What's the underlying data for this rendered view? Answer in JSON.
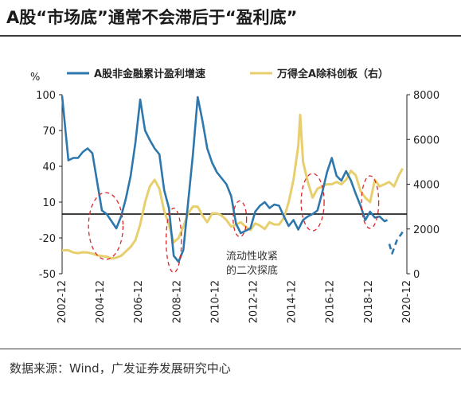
{
  "header": {
    "title": "A股“市场底”通常不会滞后于“盈利底”"
  },
  "footer": {
    "source": "数据来源：Wind，广发证券发展研究中心"
  },
  "annotation": {
    "line1": "流动性收紧",
    "line2": "的二次探底"
  },
  "colors": {
    "earnings": "#2d77ad",
    "index": "#e8cf6e",
    "circle": "#d9262a",
    "zero": "#000000"
  },
  "chart_data": {
    "type": "line",
    "left_axis": {
      "unit": "%",
      "ticks": [
        100,
        70,
        40,
        10,
        -20,
        -50
      ],
      "range": [
        -50,
        100
      ]
    },
    "right_axis": {
      "ticks": [
        8000,
        6000,
        4000,
        2000,
        0
      ],
      "range": [
        0,
        8000
      ]
    },
    "x_ticks": [
      "2002-12",
      "2004-12",
      "2006-12",
      "2008-12",
      "2010-12",
      "2012-12",
      "2014-12",
      "2016-12",
      "2018-12",
      "2020-12"
    ],
    "x_range": [
      2002.92,
      2020.92
    ],
    "series": [
      {
        "name": "A股非金融累计盈利增速",
        "axis": "left",
        "points": [
          [
            2002.92,
            99
          ],
          [
            2003.25,
            45
          ],
          [
            2003.5,
            47
          ],
          [
            2003.75,
            47
          ],
          [
            2004.0,
            52
          ],
          [
            2004.25,
            55
          ],
          [
            2004.5,
            51
          ],
          [
            2004.75,
            27
          ],
          [
            2005.0,
            3
          ],
          [
            2005.25,
            0
          ],
          [
            2005.5,
            -6
          ],
          [
            2005.75,
            -12
          ],
          [
            2006.0,
            -2
          ],
          [
            2006.25,
            13
          ],
          [
            2006.5,
            32
          ],
          [
            2006.75,
            60
          ],
          [
            2007.0,
            96
          ],
          [
            2007.25,
            70
          ],
          [
            2007.5,
            62
          ],
          [
            2007.75,
            55
          ],
          [
            2008.0,
            50
          ],
          [
            2008.25,
            20
          ],
          [
            2008.5,
            5
          ],
          [
            2008.75,
            -35
          ],
          [
            2009.0,
            -40
          ],
          [
            2009.25,
            -30
          ],
          [
            2009.5,
            10
          ],
          [
            2009.75,
            50
          ],
          [
            2010.0,
            98
          ],
          [
            2010.25,
            78
          ],
          [
            2010.5,
            55
          ],
          [
            2010.75,
            43
          ],
          [
            2011.0,
            35
          ],
          [
            2011.25,
            30
          ],
          [
            2011.5,
            25
          ],
          [
            2011.75,
            15
          ],
          [
            2012.0,
            -8
          ],
          [
            2012.25,
            -16
          ],
          [
            2012.5,
            -14
          ],
          [
            2012.75,
            -12
          ],
          [
            2013.0,
            2
          ],
          [
            2013.25,
            7
          ],
          [
            2013.5,
            10
          ],
          [
            2013.75,
            5
          ],
          [
            2014.0,
            8
          ],
          [
            2014.25,
            7
          ],
          [
            2014.5,
            -2
          ],
          [
            2014.75,
            -10
          ],
          [
            2015.0,
            -5
          ],
          [
            2015.25,
            -13
          ],
          [
            2015.5,
            -5
          ],
          [
            2015.75,
            -2
          ],
          [
            2016.0,
            0
          ],
          [
            2016.25,
            3
          ],
          [
            2016.5,
            18
          ],
          [
            2016.75,
            35
          ],
          [
            2017.0,
            47
          ],
          [
            2017.25,
            32
          ],
          [
            2017.5,
            28
          ],
          [
            2017.75,
            36
          ],
          [
            2018.0,
            28
          ],
          [
            2018.25,
            17
          ],
          [
            2018.5,
            7
          ],
          [
            2018.75,
            -5
          ],
          [
            2019.0,
            2
          ],
          [
            2019.25,
            -3
          ],
          [
            2019.5,
            -2
          ],
          [
            2019.75,
            -6
          ],
          [
            2019.9,
            -5
          ]
        ]
      },
      {
        "name": "A股非金融累计盈利增速（虚线）",
        "axis": "left",
        "dashed": true,
        "points": [
          [
            2020.0,
            -25
          ],
          [
            2020.15,
            -33
          ],
          [
            2020.4,
            -22
          ],
          [
            2020.7,
            -15
          ]
        ]
      },
      {
        "name": "万得全A除科创板（右）",
        "axis": "right",
        "points": [
          [
            2002.92,
            1050
          ],
          [
            2003.25,
            1050
          ],
          [
            2003.5,
            950
          ],
          [
            2003.75,
            920
          ],
          [
            2004.0,
            960
          ],
          [
            2004.25,
            950
          ],
          [
            2004.5,
            900
          ],
          [
            2004.75,
            820
          ],
          [
            2005.0,
            790
          ],
          [
            2005.25,
            760
          ],
          [
            2005.5,
            680
          ],
          [
            2005.75,
            720
          ],
          [
            2006.0,
            800
          ],
          [
            2006.25,
            1000
          ],
          [
            2006.5,
            1200
          ],
          [
            2006.75,
            1500
          ],
          [
            2007.0,
            2200
          ],
          [
            2007.25,
            3200
          ],
          [
            2007.5,
            3900
          ],
          [
            2007.75,
            4200
          ],
          [
            2008.0,
            3800
          ],
          [
            2008.25,
            2800
          ],
          [
            2008.5,
            2200
          ],
          [
            2008.75,
            1400
          ],
          [
            2009.0,
            1600
          ],
          [
            2009.25,
            2100
          ],
          [
            2009.5,
            2700
          ],
          [
            2009.75,
            3000
          ],
          [
            2010.0,
            3000
          ],
          [
            2010.25,
            2600
          ],
          [
            2010.5,
            2300
          ],
          [
            2010.75,
            2700
          ],
          [
            2011.0,
            2700
          ],
          [
            2011.25,
            2600
          ],
          [
            2011.5,
            2400
          ],
          [
            2011.75,
            2100
          ],
          [
            2012.0,
            2200
          ],
          [
            2012.25,
            2300
          ],
          [
            2012.5,
            2100
          ],
          [
            2012.75,
            1950
          ],
          [
            2013.0,
            2250
          ],
          [
            2013.25,
            2150
          ],
          [
            2013.5,
            2000
          ],
          [
            2013.75,
            2300
          ],
          [
            2014.0,
            2200
          ],
          [
            2014.25,
            2200
          ],
          [
            2014.5,
            2500
          ],
          [
            2014.75,
            3200
          ],
          [
            2015.0,
            4200
          ],
          [
            2015.25,
            5700
          ],
          [
            2015.35,
            7100
          ],
          [
            2015.5,
            5000
          ],
          [
            2015.75,
            4100
          ],
          [
            2016.0,
            3400
          ],
          [
            2016.25,
            3800
          ],
          [
            2016.5,
            3900
          ],
          [
            2016.75,
            4000
          ],
          [
            2017.0,
            4000
          ],
          [
            2017.25,
            4100
          ],
          [
            2017.5,
            4000
          ],
          [
            2017.75,
            4200
          ],
          [
            2018.0,
            4600
          ],
          [
            2018.25,
            4400
          ],
          [
            2018.5,
            3700
          ],
          [
            2018.75,
            3400
          ],
          [
            2019.0,
            3200
          ],
          [
            2019.25,
            4200
          ],
          [
            2019.5,
            3900
          ],
          [
            2019.75,
            4000
          ],
          [
            2020.0,
            4100
          ],
          [
            2020.25,
            3900
          ],
          [
            2020.5,
            4400
          ],
          [
            2020.7,
            4700
          ]
        ]
      }
    ],
    "circles": [
      {
        "center": [
          2005.2,
          -10
        ],
        "rx_years": 0.9,
        "ry_value": 28
      },
      {
        "center": [
          2008.75,
          -22
        ],
        "rx_years": 0.4,
        "ry_value": 27
      },
      {
        "center": [
          2012.2,
          -4
        ],
        "rx_years": 0.35,
        "ry_value": 15
      },
      {
        "center": [
          2016.0,
          10
        ],
        "rx_years": 0.6,
        "ry_value": 24
      },
      {
        "center": [
          2019.0,
          10
        ],
        "rx_years": 0.45,
        "ry_value": 22
      }
    ]
  }
}
